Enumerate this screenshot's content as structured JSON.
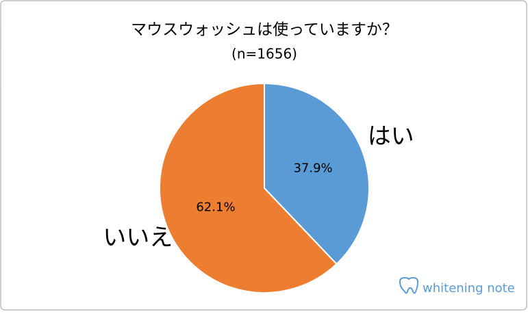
{
  "chart_data": {
    "type": "pie",
    "title": "マウスウォッシュは使っていますか？",
    "subtitle": "(n=1656)",
    "categories": [
      "はい",
      "いいえ"
    ],
    "values": [
      37.9,
      62.1
    ],
    "value_labels": [
      "37.9%",
      "62.1%"
    ],
    "colors": [
      "#5b9bd5",
      "#ed7d31"
    ]
  },
  "watermark": "whitening note"
}
